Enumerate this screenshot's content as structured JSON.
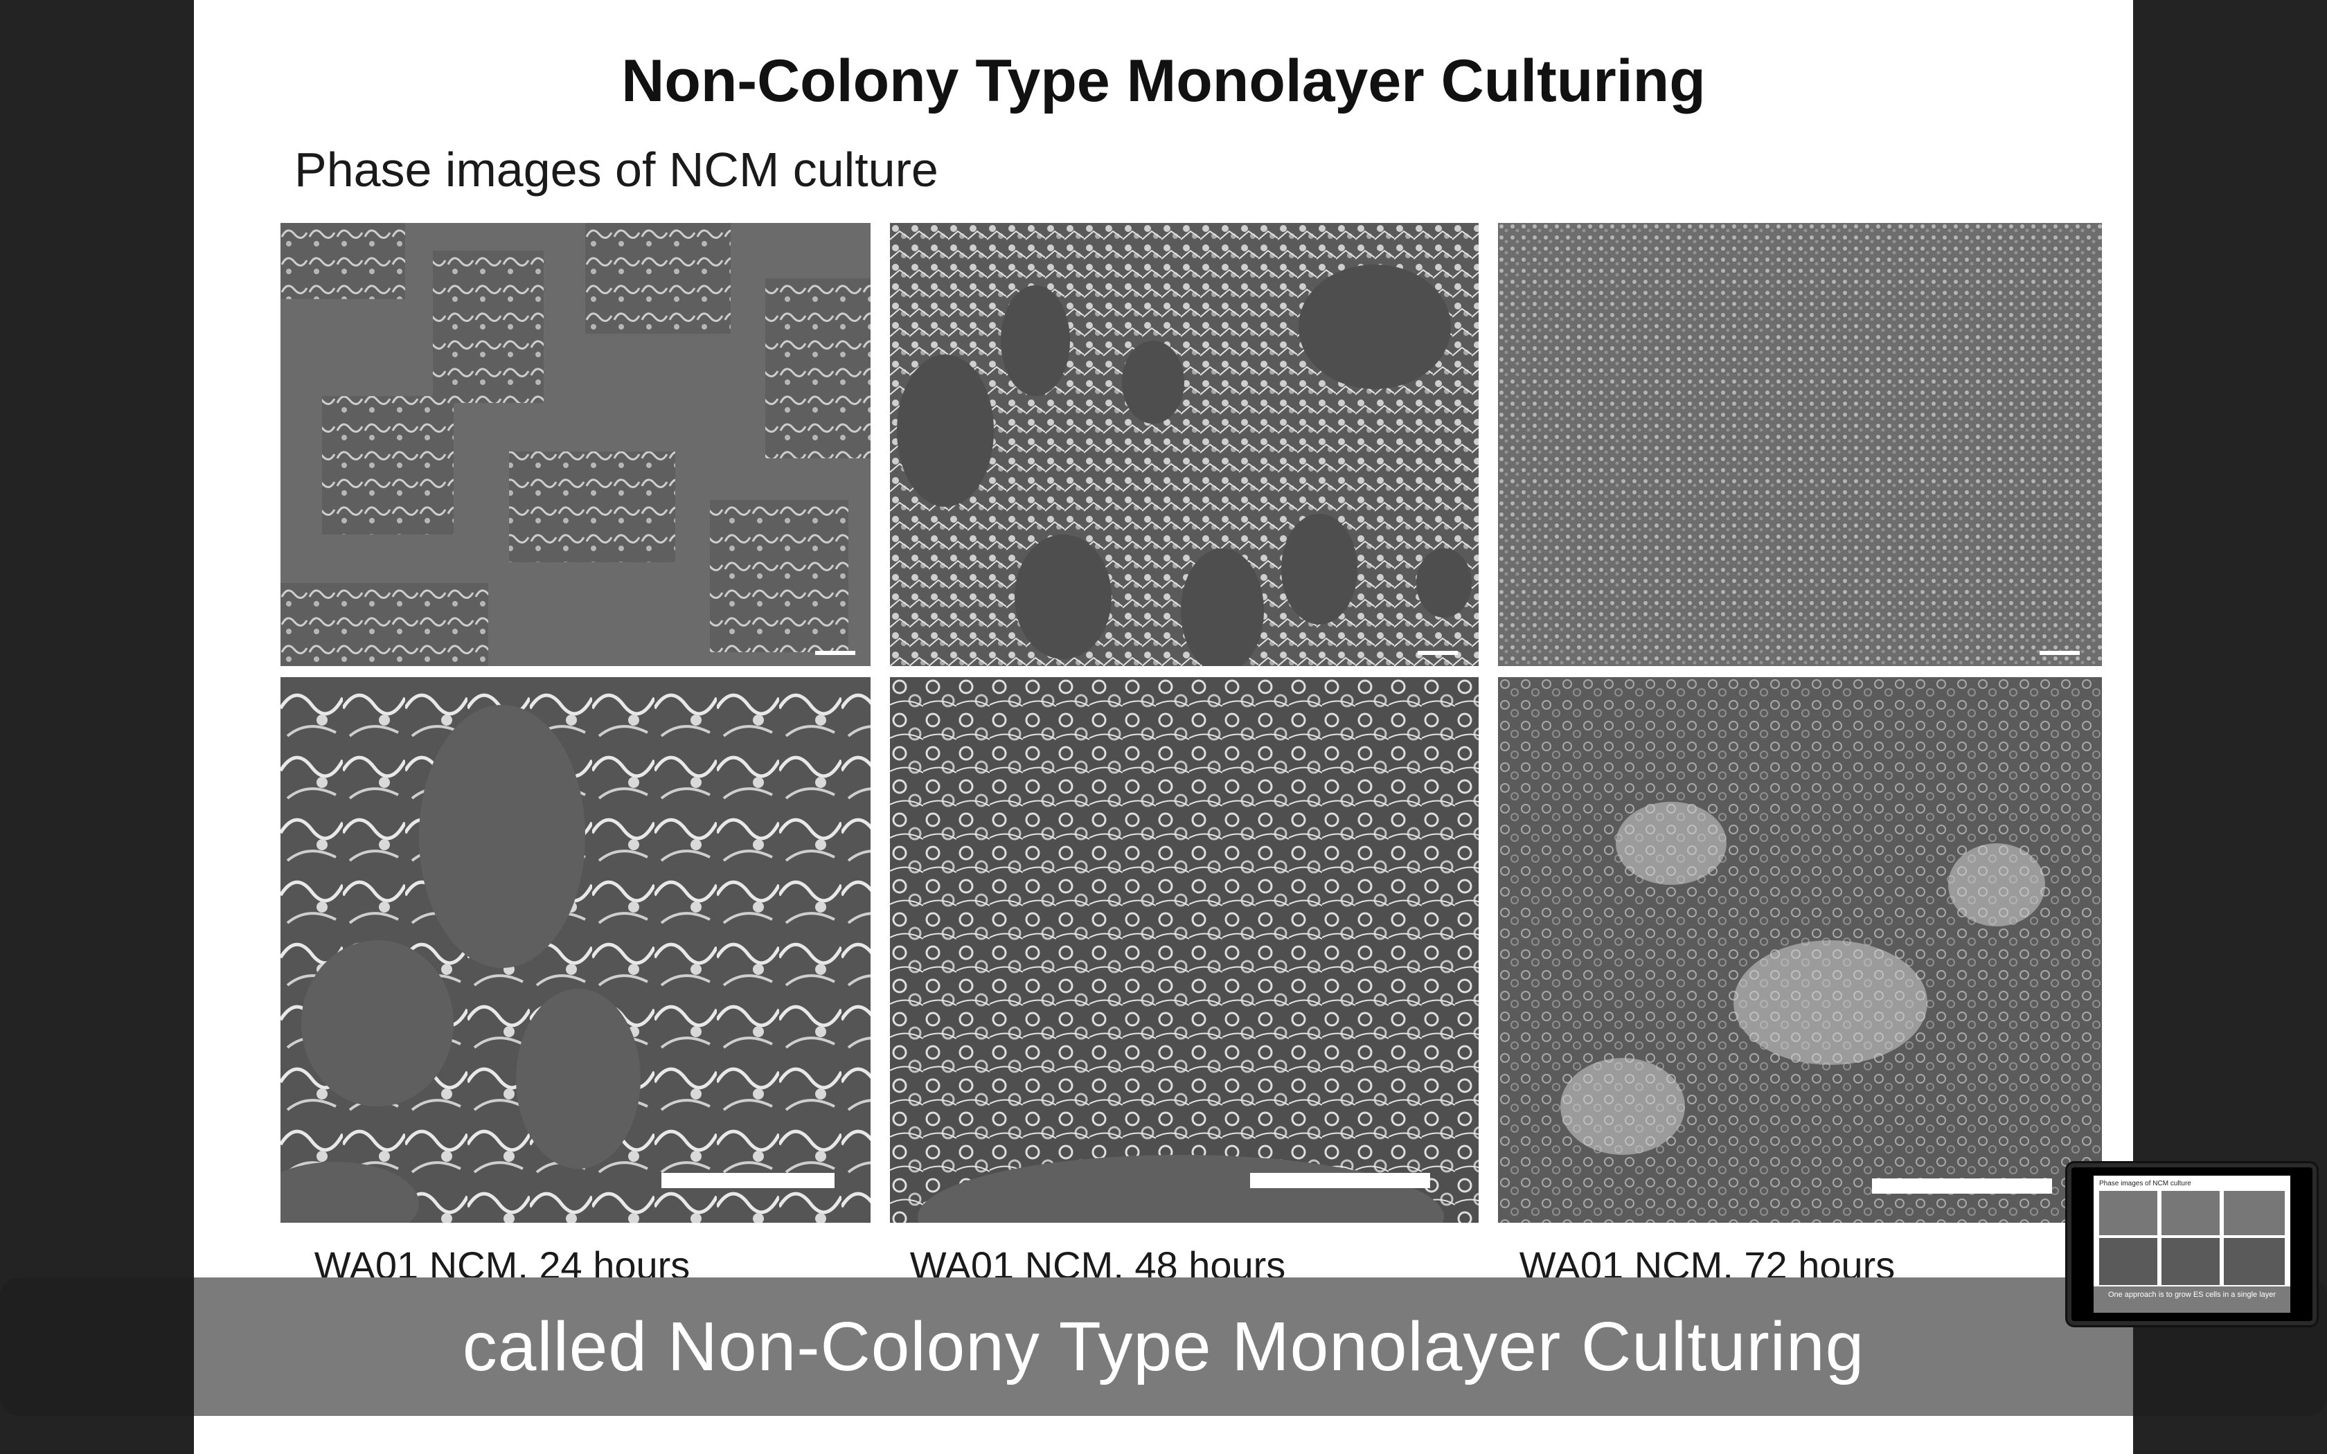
{
  "slide": {
    "title": "Non-Colony Type Monolayer Culturing",
    "subtitle": "Phase images of NCM culture",
    "panels": [
      {
        "label": "WA01 NCM, 24 hours",
        "density": "sparse"
      },
      {
        "label": "WA01 NCM, 48 hours",
        "density": "medium"
      },
      {
        "label": "WA01 NCM, 72 hours",
        "density": "dense"
      }
    ]
  },
  "caption": {
    "text": "called Non-Colony Type Monolayer Culturing"
  },
  "pip": {
    "title": "Phase images of NCM culture",
    "caption": "One approach is to grow ES cells in a single layer"
  },
  "colors": {
    "background": "#232323",
    "slide": "#ffffff",
    "caption_bar": "#7b7b7b",
    "cell_gray": "#6a6a6a"
  }
}
